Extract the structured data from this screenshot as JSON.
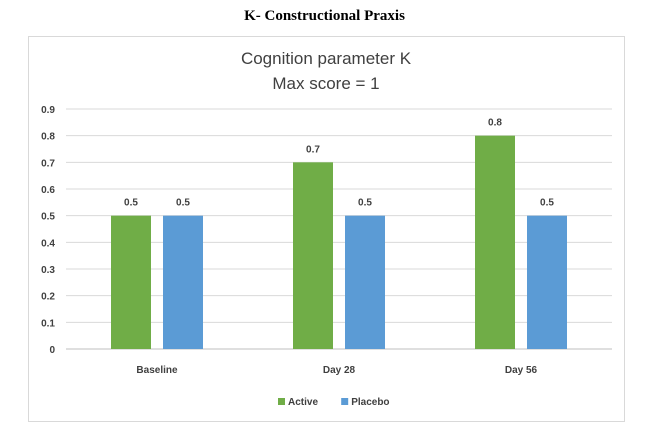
{
  "heading": "K- Constructional Praxis",
  "chart_data": {
    "type": "bar",
    "title": [
      "Cognition parameter K",
      "Max score = 1"
    ],
    "categories": [
      "Baseline",
      "Day 28",
      "Day 56"
    ],
    "series": [
      {
        "name": "Active",
        "color": "#70ad47",
        "values": [
          0.5,
          0.7,
          0.8
        ]
      },
      {
        "name": "Placebo",
        "color": "#5b9bd5",
        "values": [
          0.5,
          0.5,
          0.5
        ]
      }
    ],
    "data_labels": [
      [
        "0.5",
        "0.7",
        "0.8"
      ],
      [
        "0.5",
        "0.5",
        "0.5"
      ]
    ],
    "ylim": [
      0,
      0.9
    ],
    "yticks": [
      "0",
      "0.1",
      "0.2",
      "0.3",
      "0.4",
      "0.5",
      "0.6",
      "0.7",
      "0.8",
      "0.9"
    ],
    "xlabel": "",
    "ylabel": "",
    "grid": true,
    "legend": "bottom-center"
  }
}
